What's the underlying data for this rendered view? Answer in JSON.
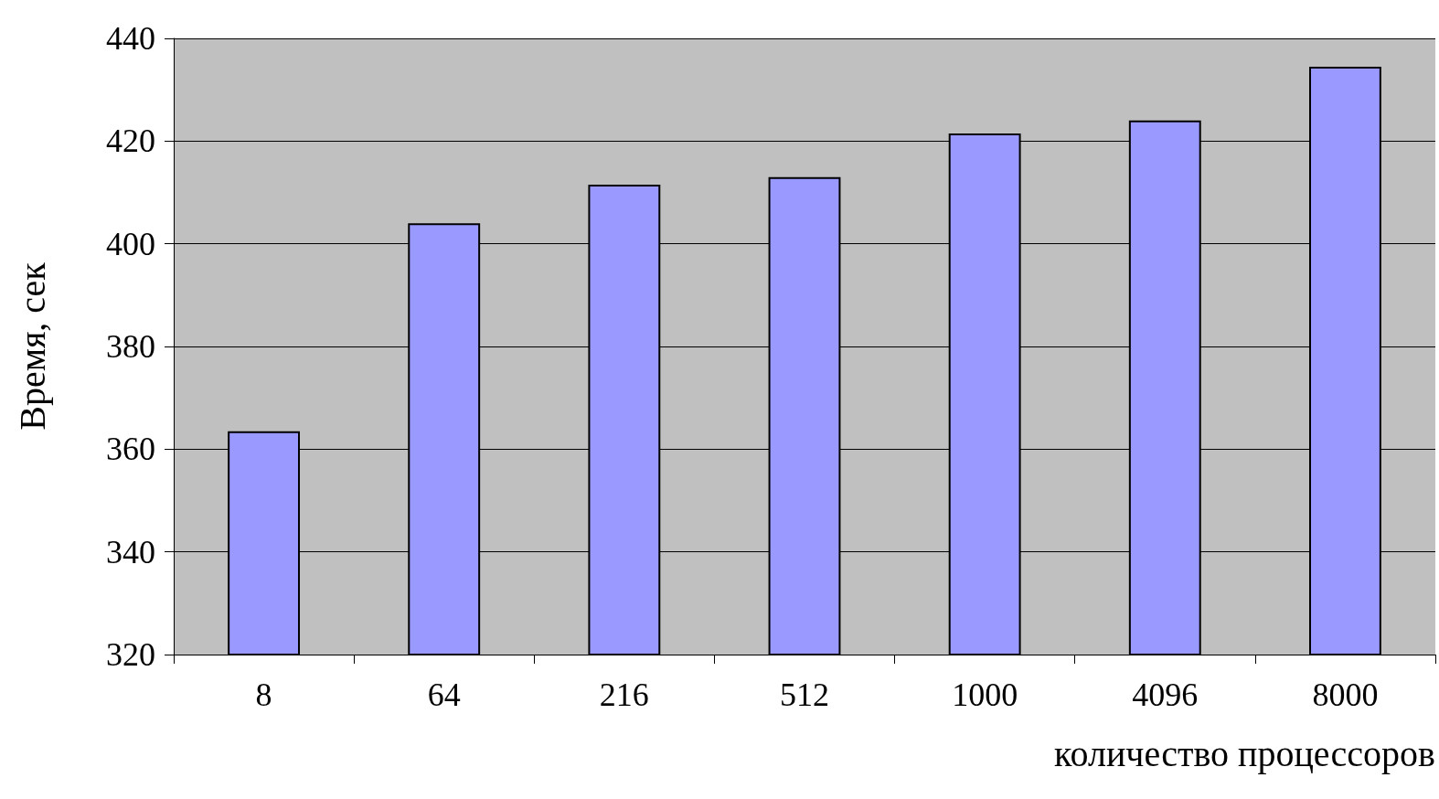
{
  "chart_data": {
    "type": "bar",
    "xlabel": "количество процессоров",
    "ylabel": "Время, сек",
    "categories": [
      "8",
      "64",
      "216",
      "512",
      "1000",
      "4096",
      "8000"
    ],
    "values": [
      363.5,
      404,
      411.5,
      413,
      421.5,
      424,
      434.5
    ],
    "color": "#9999ff",
    "ylim": [
      320,
      440
    ],
    "yticks": [
      320,
      340,
      360,
      380,
      400,
      420,
      440
    ],
    "grid": "y"
  }
}
